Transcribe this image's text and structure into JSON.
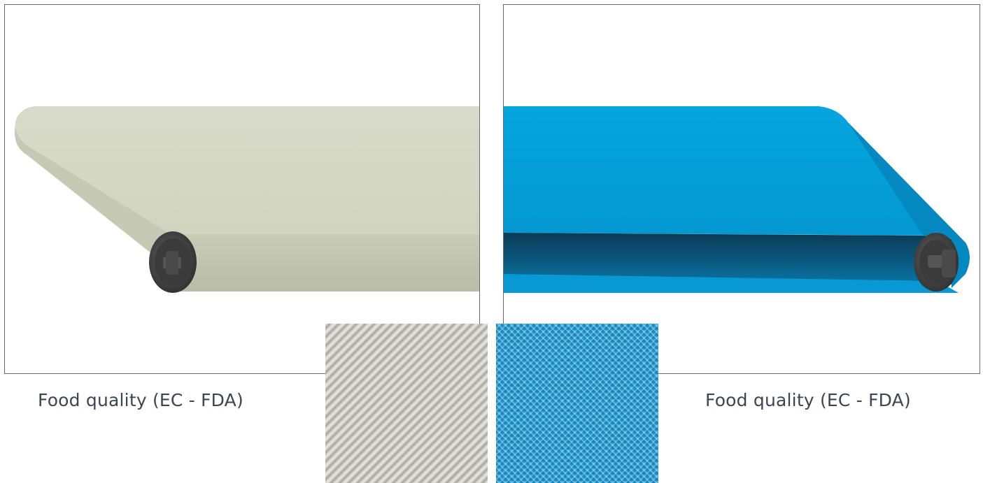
{
  "products": {
    "left": {
      "caption": "Food quality (EC - FDA)",
      "belt_color": "#d3d7c4",
      "texture": "diagonal-rib",
      "texture_color": "#cfcbc3"
    },
    "right": {
      "caption": "Food quality (EC - FDA)",
      "belt_color": "#03a2dc",
      "texture": "diamond-grid",
      "texture_color": "#2aa7dc"
    }
  }
}
